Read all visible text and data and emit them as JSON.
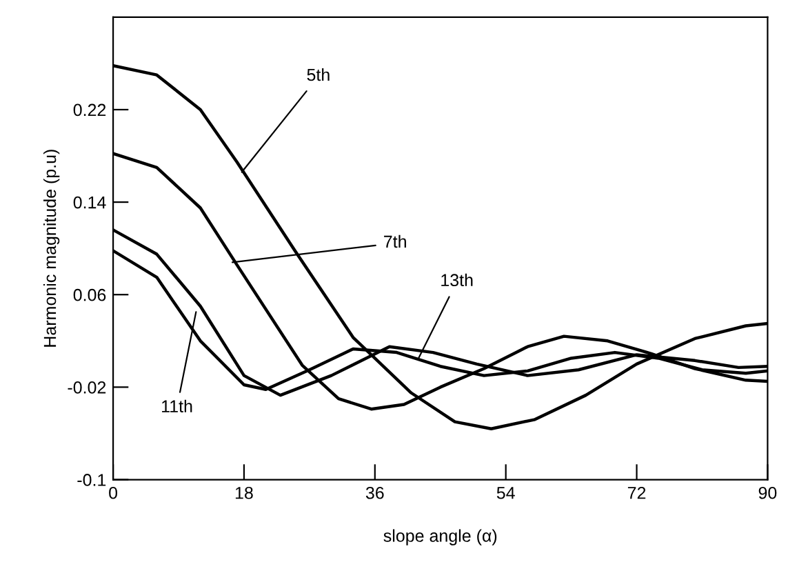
{
  "chart_data": {
    "type": "line",
    "xlabel": "slope angle (α)",
    "ylabel": "Harmonic magnitude (p.u)",
    "xlim": [
      0,
      90
    ],
    "xticks": [
      0,
      18,
      36,
      54,
      72,
      90
    ],
    "ylim": [
      -0.1,
      0.3
    ],
    "yticks": [
      -0.1,
      -0.02,
      0.06,
      0.14,
      0.22
    ],
    "grid": false,
    "legend": false,
    "marker": "none",
    "line_style": "solid",
    "series": [
      {
        "color": "#000000",
        "x": [
          0,
          6,
          12,
          17,
          25,
          33,
          41,
          47,
          52,
          58,
          65,
          72,
          80,
          87,
          90
        ],
        "values": [
          0.258,
          0.25,
          0.22,
          0.175,
          0.098,
          0.023,
          -0.025,
          -0.05,
          -0.056,
          -0.048,
          -0.027,
          0.0,
          0.022,
          0.033,
          0.035
        ]
      },
      {
        "color": "#000000",
        "x": [
          0,
          6,
          12,
          17,
          26,
          31,
          35.5,
          40,
          45,
          51,
          57,
          62,
          68,
          74,
          80,
          87,
          90
        ],
        "values": [
          0.182,
          0.17,
          0.135,
          0.086,
          -0.001,
          -0.03,
          -0.039,
          -0.035,
          -0.02,
          -0.004,
          0.015,
          0.024,
          0.02,
          0.009,
          -0.004,
          -0.014,
          -0.015
        ]
      },
      {
        "color": "#000000",
        "x": [
          0,
          6,
          12,
          18,
          23,
          30,
          38,
          44,
          50,
          57,
          64,
          72,
          80,
          86,
          90
        ],
        "values": [
          0.116,
          0.095,
          0.05,
          -0.01,
          -0.027,
          -0.01,
          0.015,
          0.01,
          0.0,
          -0.01,
          -0.005,
          0.008,
          0.003,
          -0.003,
          -0.002
        ]
      },
      {
        "color": "#000000",
        "x": [
          0,
          6,
          12,
          18,
          21,
          27,
          33,
          39,
          45,
          51,
          57,
          63,
          69,
          75,
          81,
          87,
          90
        ],
        "values": [
          0.098,
          0.075,
          0.02,
          -0.018,
          -0.022,
          -0.005,
          0.013,
          0.01,
          -0.002,
          -0.01,
          -0.006,
          0.005,
          0.01,
          0.005,
          -0.005,
          -0.008,
          -0.006
        ]
      }
    ],
    "annotations": [
      {
        "text": "5th",
        "x": 17.7,
        "y": 0.166
      },
      {
        "text": "7th",
        "x": 16.4,
        "y": 0.088
      },
      {
        "text": "11th",
        "x": 11.4,
        "y": 0.045
      },
      {
        "text": "13th",
        "x": 42,
        "y": 0.005
      }
    ]
  }
}
